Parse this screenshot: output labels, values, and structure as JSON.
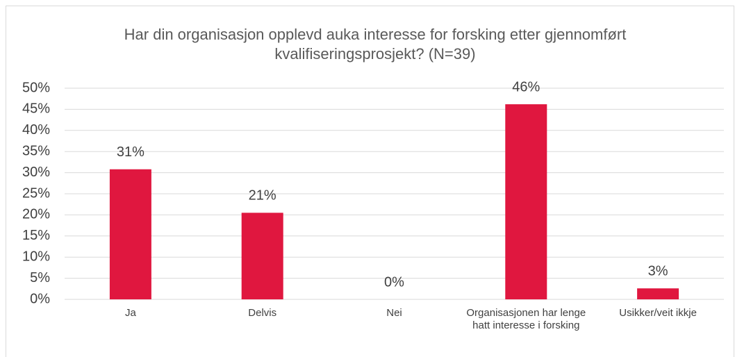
{
  "chart_data": {
    "type": "bar",
    "title": "Har din organisasjon opplevd auka interesse for forsking etter gjennomført kvalifiseringsprosjekt? (N=39)",
    "categories": [
      "Ja",
      "Delvis",
      "Nei",
      "Organisasjonen har lenge hatt interesse i forsking",
      "Usikker/veit ikkje"
    ],
    "values": [
      30.8,
      20.5,
      0,
      46.2,
      2.6
    ],
    "value_labels": [
      "31%",
      "21%",
      "0%",
      "46%",
      "3%"
    ],
    "color": "#e0173f",
    "ylim": [
      0,
      50
    ],
    "yticks": [
      {
        "value": 0,
        "label": "0%"
      },
      {
        "value": 5,
        "label": "5%"
      },
      {
        "value": 10,
        "label": "10%"
      },
      {
        "value": 15,
        "label": "15%"
      },
      {
        "value": 20,
        "label": "20%"
      },
      {
        "value": 25,
        "label": "25%"
      },
      {
        "value": 30,
        "label": "30%"
      },
      {
        "value": 35,
        "label": "35%"
      },
      {
        "value": 40,
        "label": "40%"
      },
      {
        "value": 45,
        "label": "45%"
      },
      {
        "value": 50,
        "label": "50%"
      }
    ],
    "grid": true
  }
}
